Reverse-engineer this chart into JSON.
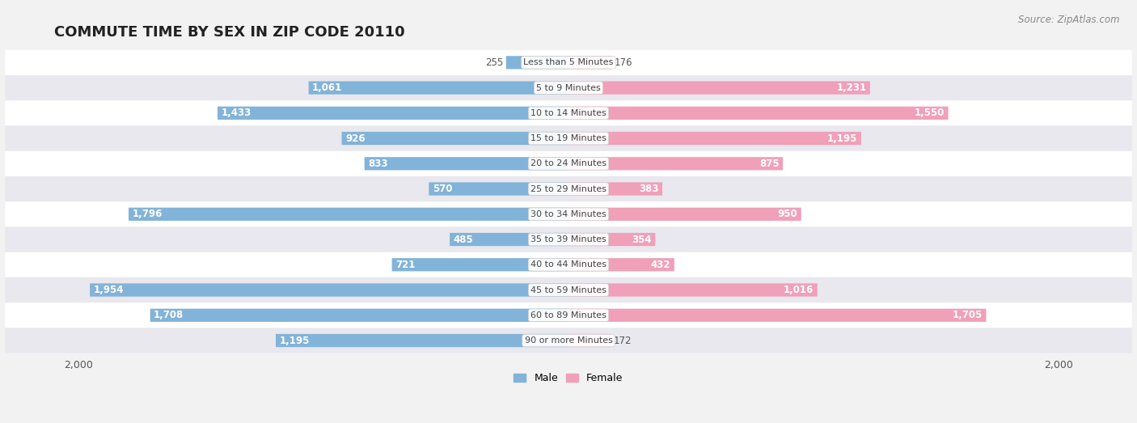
{
  "title": "COMMUTE TIME BY SEX IN ZIP CODE 20110",
  "source": "Source: ZipAtlas.com",
  "categories": [
    "Less than 5 Minutes",
    "5 to 9 Minutes",
    "10 to 14 Minutes",
    "15 to 19 Minutes",
    "20 to 24 Minutes",
    "25 to 29 Minutes",
    "30 to 34 Minutes",
    "35 to 39 Minutes",
    "40 to 44 Minutes",
    "45 to 59 Minutes",
    "60 to 89 Minutes",
    "90 or more Minutes"
  ],
  "male_values": [
    255,
    1061,
    1433,
    926,
    833,
    570,
    1796,
    485,
    721,
    1954,
    1708,
    1195
  ],
  "female_values": [
    176,
    1231,
    1550,
    1195,
    875,
    383,
    950,
    354,
    432,
    1016,
    1705,
    172
  ],
  "male_color": "#82b3d8",
  "female_color": "#f0a0b8",
  "background_color": "#f2f2f2",
  "row_bg_odd": "#ffffff",
  "row_bg_even": "#e8e8ee",
  "xlim": 2000,
  "bar_height": 0.52,
  "title_fontsize": 13,
  "label_fontsize": 8.5,
  "category_fontsize": 8,
  "legend_fontsize": 9,
  "source_fontsize": 8.5,
  "inside_threshold": 300
}
